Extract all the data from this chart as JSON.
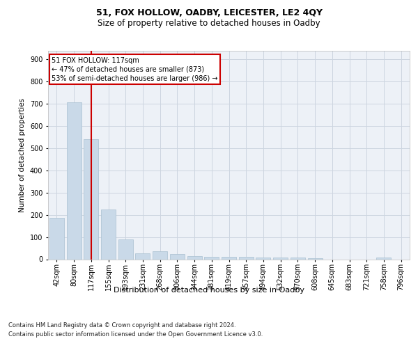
{
  "title": "51, FOX HOLLOW, OADBY, LEICESTER, LE2 4QY",
  "subtitle": "Size of property relative to detached houses in Oadby",
  "xlabel": "Distribution of detached houses by size in Oadby",
  "ylabel": "Number of detached properties",
  "categories": [
    "42sqm",
    "80sqm",
    "117sqm",
    "155sqm",
    "193sqm",
    "231sqm",
    "268sqm",
    "306sqm",
    "344sqm",
    "381sqm",
    "419sqm",
    "457sqm",
    "494sqm",
    "532sqm",
    "570sqm",
    "608sqm",
    "645sqm",
    "683sqm",
    "721sqm",
    "758sqm",
    "796sqm"
  ],
  "values": [
    185,
    708,
    540,
    225,
    90,
    27,
    35,
    22,
    13,
    10,
    12,
    10,
    8,
    7,
    7,
    6,
    0,
    0,
    0,
    8,
    0
  ],
  "bar_color": "#c9d9e8",
  "bar_edge_color": "#a8bfd0",
  "grid_color": "#ccd5e0",
  "background_color": "#edf1f7",
  "vline_x_index": 2,
  "vline_color": "#cc0000",
  "annotation_text": "51 FOX HOLLOW: 117sqm\n← 47% of detached houses are smaller (873)\n53% of semi-detached houses are larger (986) →",
  "annotation_box_facecolor": "#ffffff",
  "annotation_box_edgecolor": "#cc0000",
  "ylim": [
    0,
    940
  ],
  "yticks": [
    0,
    100,
    200,
    300,
    400,
    500,
    600,
    700,
    800,
    900
  ],
  "title_fontsize": 9,
  "subtitle_fontsize": 8.5,
  "ylabel_fontsize": 7.5,
  "xlabel_fontsize": 8,
  "tick_fontsize": 7,
  "annotation_fontsize": 7,
  "footer_fontsize": 6,
  "footer_line1": "Contains HM Land Registry data © Crown copyright and database right 2024.",
  "footer_line2": "Contains public sector information licensed under the Open Government Licence v3.0."
}
